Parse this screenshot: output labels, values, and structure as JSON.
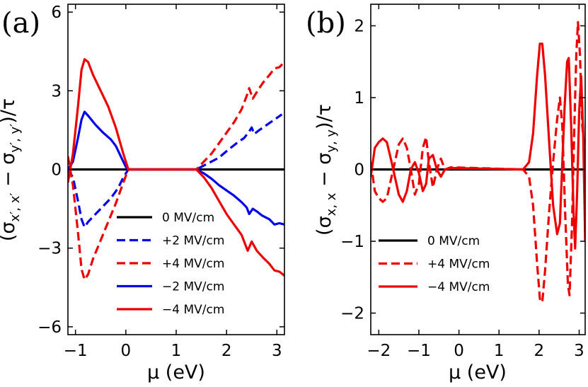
{
  "chart_data": [
    {
      "type": "line",
      "panel_label": "(a)",
      "xlabel": "μ (eV)",
      "ylabel": "(σx′,x′ − σy′,y′)/τ",
      "ylabel_parts": {
        "open": "(σ",
        "sub1": "x′, x′",
        "minus": " − σ",
        "sub2": "y′, y′",
        "close": ")/τ"
      },
      "xlim": [
        -1.15,
        3.15
      ],
      "ylim": [
        -6.3,
        6.3
      ],
      "xticks": [
        {
          "v": -1,
          "label": "−1"
        },
        {
          "v": 0,
          "label": "0"
        },
        {
          "v": 1,
          "label": "1"
        },
        {
          "v": 2,
          "label": "2"
        },
        {
          "v": 3,
          "label": "3"
        }
      ],
      "yticks": [
        {
          "v": -6,
          "label": "−6"
        },
        {
          "v": -3,
          "label": "−3"
        },
        {
          "v": 0,
          "label": "0"
        },
        {
          "v": 3,
          "label": "3"
        },
        {
          "v": 6,
          "label": "6"
        }
      ],
      "legend_position": "lower-center",
      "series": [
        {
          "name": "0 MV/cm",
          "color": "#000000",
          "dash": "solid",
          "points": [
            [
              -1.15,
              0
            ],
            [
              3.15,
              0
            ]
          ]
        },
        {
          "name": "+2 MV/cm",
          "color": "#0000ee",
          "dash": "dashed",
          "points": [
            [
              -1.15,
              0.0
            ],
            [
              -1.05,
              -0.3
            ],
            [
              -0.95,
              -1.2
            ],
            [
              -0.88,
              -1.9
            ],
            [
              -0.82,
              -2.2
            ],
            [
              -0.75,
              -2.0
            ],
            [
              -0.6,
              -1.7
            ],
            [
              -0.45,
              -1.4
            ],
            [
              -0.3,
              -1.1
            ],
            [
              -0.15,
              -0.7
            ],
            [
              -0.05,
              -0.3
            ],
            [
              0.05,
              0.0
            ],
            [
              1.4,
              0.0
            ],
            [
              1.55,
              0.15
            ],
            [
              1.7,
              0.3
            ],
            [
              1.85,
              0.45
            ],
            [
              2.0,
              0.7
            ],
            [
              2.2,
              1.0
            ],
            [
              2.35,
              1.2
            ],
            [
              2.45,
              1.45
            ],
            [
              2.5,
              1.6
            ],
            [
              2.55,
              1.35
            ],
            [
              2.65,
              1.5
            ],
            [
              2.8,
              1.7
            ],
            [
              2.95,
              1.9
            ],
            [
              3.1,
              2.1
            ]
          ]
        },
        {
          "name": "+4 MV/cm",
          "color": "#ee0000",
          "dash": "dashed",
          "points": [
            [
              -1.15,
              0.5
            ],
            [
              -1.05,
              -0.6
            ],
            [
              -0.95,
              -2.4
            ],
            [
              -0.88,
              -3.8
            ],
            [
              -0.82,
              -4.2
            ],
            [
              -0.75,
              -4.0
            ],
            [
              -0.65,
              -3.4
            ],
            [
              -0.5,
              -2.7
            ],
            [
              -0.35,
              -2.0
            ],
            [
              -0.2,
              -1.3
            ],
            [
              -0.05,
              -0.5
            ],
            [
              0.05,
              0.0
            ],
            [
              1.4,
              0.0
            ],
            [
              1.55,
              0.3
            ],
            [
              1.7,
              0.6
            ],
            [
              1.85,
              1.0
            ],
            [
              2.0,
              1.4
            ],
            [
              2.15,
              1.8
            ],
            [
              2.3,
              2.3
            ],
            [
              2.4,
              2.8
            ],
            [
              2.45,
              3.1
            ],
            [
              2.52,
              2.7
            ],
            [
              2.6,
              2.95
            ],
            [
              2.72,
              3.3
            ],
            [
              2.85,
              3.6
            ],
            [
              2.95,
              3.85
            ],
            [
              3.05,
              3.9
            ],
            [
              3.15,
              4.1
            ]
          ]
        },
        {
          "name": "−2 MV/cm",
          "color": "#0000ee",
          "dash": "solid",
          "points": [
            [
              -1.15,
              0.0
            ],
            [
              -1.05,
              0.3
            ],
            [
              -0.95,
              1.2
            ],
            [
              -0.88,
              1.9
            ],
            [
              -0.82,
              2.2
            ],
            [
              -0.75,
              2.05
            ],
            [
              -0.6,
              1.7
            ],
            [
              -0.45,
              1.4
            ],
            [
              -0.3,
              1.15
            ],
            [
              -0.2,
              0.9
            ],
            [
              -0.1,
              0.5
            ],
            [
              0.0,
              0.1
            ],
            [
              0.05,
              0.0
            ],
            [
              1.4,
              0.0
            ],
            [
              1.55,
              -0.15
            ],
            [
              1.7,
              -0.35
            ],
            [
              1.85,
              -0.6
            ],
            [
              2.0,
              -0.8
            ],
            [
              2.15,
              -1.0
            ],
            [
              2.3,
              -1.25
            ],
            [
              2.4,
              -1.45
            ],
            [
              2.45,
              -1.7
            ],
            [
              2.52,
              -1.5
            ],
            [
              2.6,
              -1.6
            ],
            [
              2.7,
              -1.75
            ],
            [
              2.85,
              -1.9
            ],
            [
              2.95,
              -2.1
            ],
            [
              3.05,
              -2.05
            ],
            [
              3.15,
              -2.1
            ]
          ]
        },
        {
          "name": "−4 MV/cm",
          "color": "#ee0000",
          "dash": "solid",
          "points": [
            [
              -1.15,
              -0.5
            ],
            [
              -1.05,
              0.6
            ],
            [
              -0.95,
              2.4
            ],
            [
              -0.88,
              3.8
            ],
            [
              -0.82,
              4.2
            ],
            [
              -0.75,
              4.1
            ],
            [
              -0.65,
              3.6
            ],
            [
              -0.5,
              3.0
            ],
            [
              -0.35,
              2.4
            ],
            [
              -0.2,
              1.6
            ],
            [
              -0.05,
              0.6
            ],
            [
              0.05,
              0.0
            ],
            [
              1.4,
              0.0
            ],
            [
              1.55,
              -0.3
            ],
            [
              1.7,
              -0.7
            ],
            [
              1.85,
              -1.2
            ],
            [
              2.0,
              -1.7
            ],
            [
              2.15,
              -2.1
            ],
            [
              2.3,
              -2.5
            ],
            [
              2.42,
              -3.1
            ],
            [
              2.5,
              -2.75
            ],
            [
              2.6,
              -3.1
            ],
            [
              2.72,
              -3.35
            ],
            [
              2.85,
              -3.6
            ],
            [
              2.95,
              -3.85
            ],
            [
              3.05,
              -3.9
            ],
            [
              3.15,
              -4.05
            ]
          ]
        }
      ]
    },
    {
      "type": "line",
      "panel_label": "(b)",
      "xlabel": "μ (eV)",
      "ylabel": "(σx,x − σy,y)/τ",
      "ylabel_parts": {
        "open": "(σ",
        "sub1": "x, x",
        "minus": " − σ",
        "sub2": "y, y",
        "close": ")/τ"
      },
      "xlim": [
        -2.2,
        3.15
      ],
      "ylim": [
        -2.3,
        2.3
      ],
      "xticks": [
        {
          "v": -2,
          "label": "−2"
        },
        {
          "v": -1,
          "label": "−1"
        },
        {
          "v": 0,
          "label": "0"
        },
        {
          "v": 1,
          "label": "1"
        },
        {
          "v": 2,
          "label": "2"
        },
        {
          "v": 3,
          "label": "3"
        }
      ],
      "yticks": [
        {
          "v": -2,
          "label": "−2"
        },
        {
          "v": -1,
          "label": "−1"
        },
        {
          "v": 0,
          "label": "0"
        },
        {
          "v": 1,
          "label": "1"
        },
        {
          "v": 2,
          "label": "2"
        }
      ],
      "legend_position": "lower-left",
      "series": [
        {
          "name": "0 MV/cm",
          "color": "#000000",
          "dash": "solid",
          "points": [
            [
              -2.2,
              0
            ],
            [
              3.15,
              0
            ]
          ]
        },
        {
          "name": "+4 MV/cm",
          "color": "#ee0000",
          "dash": "dashed",
          "points": [
            [
              -2.2,
              0.1
            ],
            [
              -2.1,
              -0.3
            ],
            [
              -2.0,
              -0.4
            ],
            [
              -1.9,
              -0.45
            ],
            [
              -1.8,
              -0.4
            ],
            [
              -1.7,
              -0.15
            ],
            [
              -1.6,
              0.1
            ],
            [
              -1.5,
              0.35
            ],
            [
              -1.4,
              0.43
            ],
            [
              -1.3,
              0.3
            ],
            [
              -1.2,
              0.0
            ],
            [
              -1.1,
              -0.35
            ],
            [
              -1.0,
              -0.2
            ],
            [
              -0.9,
              0.3
            ],
            [
              -0.82,
              0.45
            ],
            [
              -0.75,
              0.1
            ],
            [
              -0.65,
              -0.25
            ],
            [
              -0.55,
              0.0
            ],
            [
              -0.45,
              0.15
            ],
            [
              -0.35,
              0.0
            ],
            [
              -0.2,
              0.03
            ],
            [
              1.6,
              0.0
            ],
            [
              1.75,
              -0.1
            ],
            [
              1.85,
              -0.5
            ],
            [
              1.95,
              -1.3
            ],
            [
              2.02,
              -1.8
            ],
            [
              2.08,
              -1.85
            ],
            [
              2.15,
              -1.4
            ],
            [
              2.25,
              -0.6
            ],
            [
              2.35,
              0.1
            ],
            [
              2.45,
              0.7
            ],
            [
              2.52,
              1.0
            ],
            [
              2.58,
              0.6
            ],
            [
              2.65,
              -0.6
            ],
            [
              2.72,
              -1.6
            ],
            [
              2.76,
              -1.75
            ],
            [
              2.82,
              -0.8
            ],
            [
              2.88,
              0.6
            ],
            [
              2.93,
              1.6
            ],
            [
              2.97,
              2.05
            ],
            [
              3.02,
              1.6
            ],
            [
              3.08,
              0.6
            ],
            [
              3.15,
              0.2
            ]
          ]
        },
        {
          "name": "−4 MV/cm",
          "color": "#ee0000",
          "dash": "solid",
          "points": [
            [
              -2.2,
              -0.1
            ],
            [
              -2.1,
              0.3
            ],
            [
              -2.0,
              0.38
            ],
            [
              -1.9,
              0.43
            ],
            [
              -1.8,
              0.38
            ],
            [
              -1.7,
              0.15
            ],
            [
              -1.6,
              -0.1
            ],
            [
              -1.5,
              -0.35
            ],
            [
              -1.4,
              -0.45
            ],
            [
              -1.3,
              -0.3
            ],
            [
              -1.2,
              0.0
            ],
            [
              -1.1,
              0.1
            ],
            [
              -1.0,
              -0.05
            ],
            [
              -0.9,
              -0.3
            ],
            [
              -0.82,
              -0.2
            ],
            [
              -0.75,
              0.15
            ],
            [
              -0.65,
              0.2
            ],
            [
              -0.55,
              0.0
            ],
            [
              -0.45,
              -0.1
            ],
            [
              -0.35,
              0.0
            ],
            [
              -0.2,
              0.02
            ],
            [
              1.6,
              0.0
            ],
            [
              1.75,
              0.1
            ],
            [
              1.85,
              0.5
            ],
            [
              1.95,
              1.3
            ],
            [
              2.02,
              1.75
            ],
            [
              2.08,
              1.75
            ],
            [
              2.15,
              1.3
            ],
            [
              2.25,
              0.4
            ],
            [
              2.35,
              -0.5
            ],
            [
              2.45,
              -0.9
            ],
            [
              2.52,
              -0.75
            ],
            [
              2.58,
              0.1
            ],
            [
              2.64,
              0.9
            ],
            [
              2.7,
              1.5
            ],
            [
              2.74,
              1.55
            ],
            [
              2.8,
              0.6
            ],
            [
              2.86,
              -0.6
            ],
            [
              2.9,
              -1.1
            ],
            [
              2.95,
              -0.3
            ],
            [
              3.0,
              0.8
            ],
            [
              3.05,
              1.3
            ],
            [
              3.1,
              0.5
            ],
            [
              3.15,
              -1.0
            ]
          ]
        }
      ]
    }
  ]
}
